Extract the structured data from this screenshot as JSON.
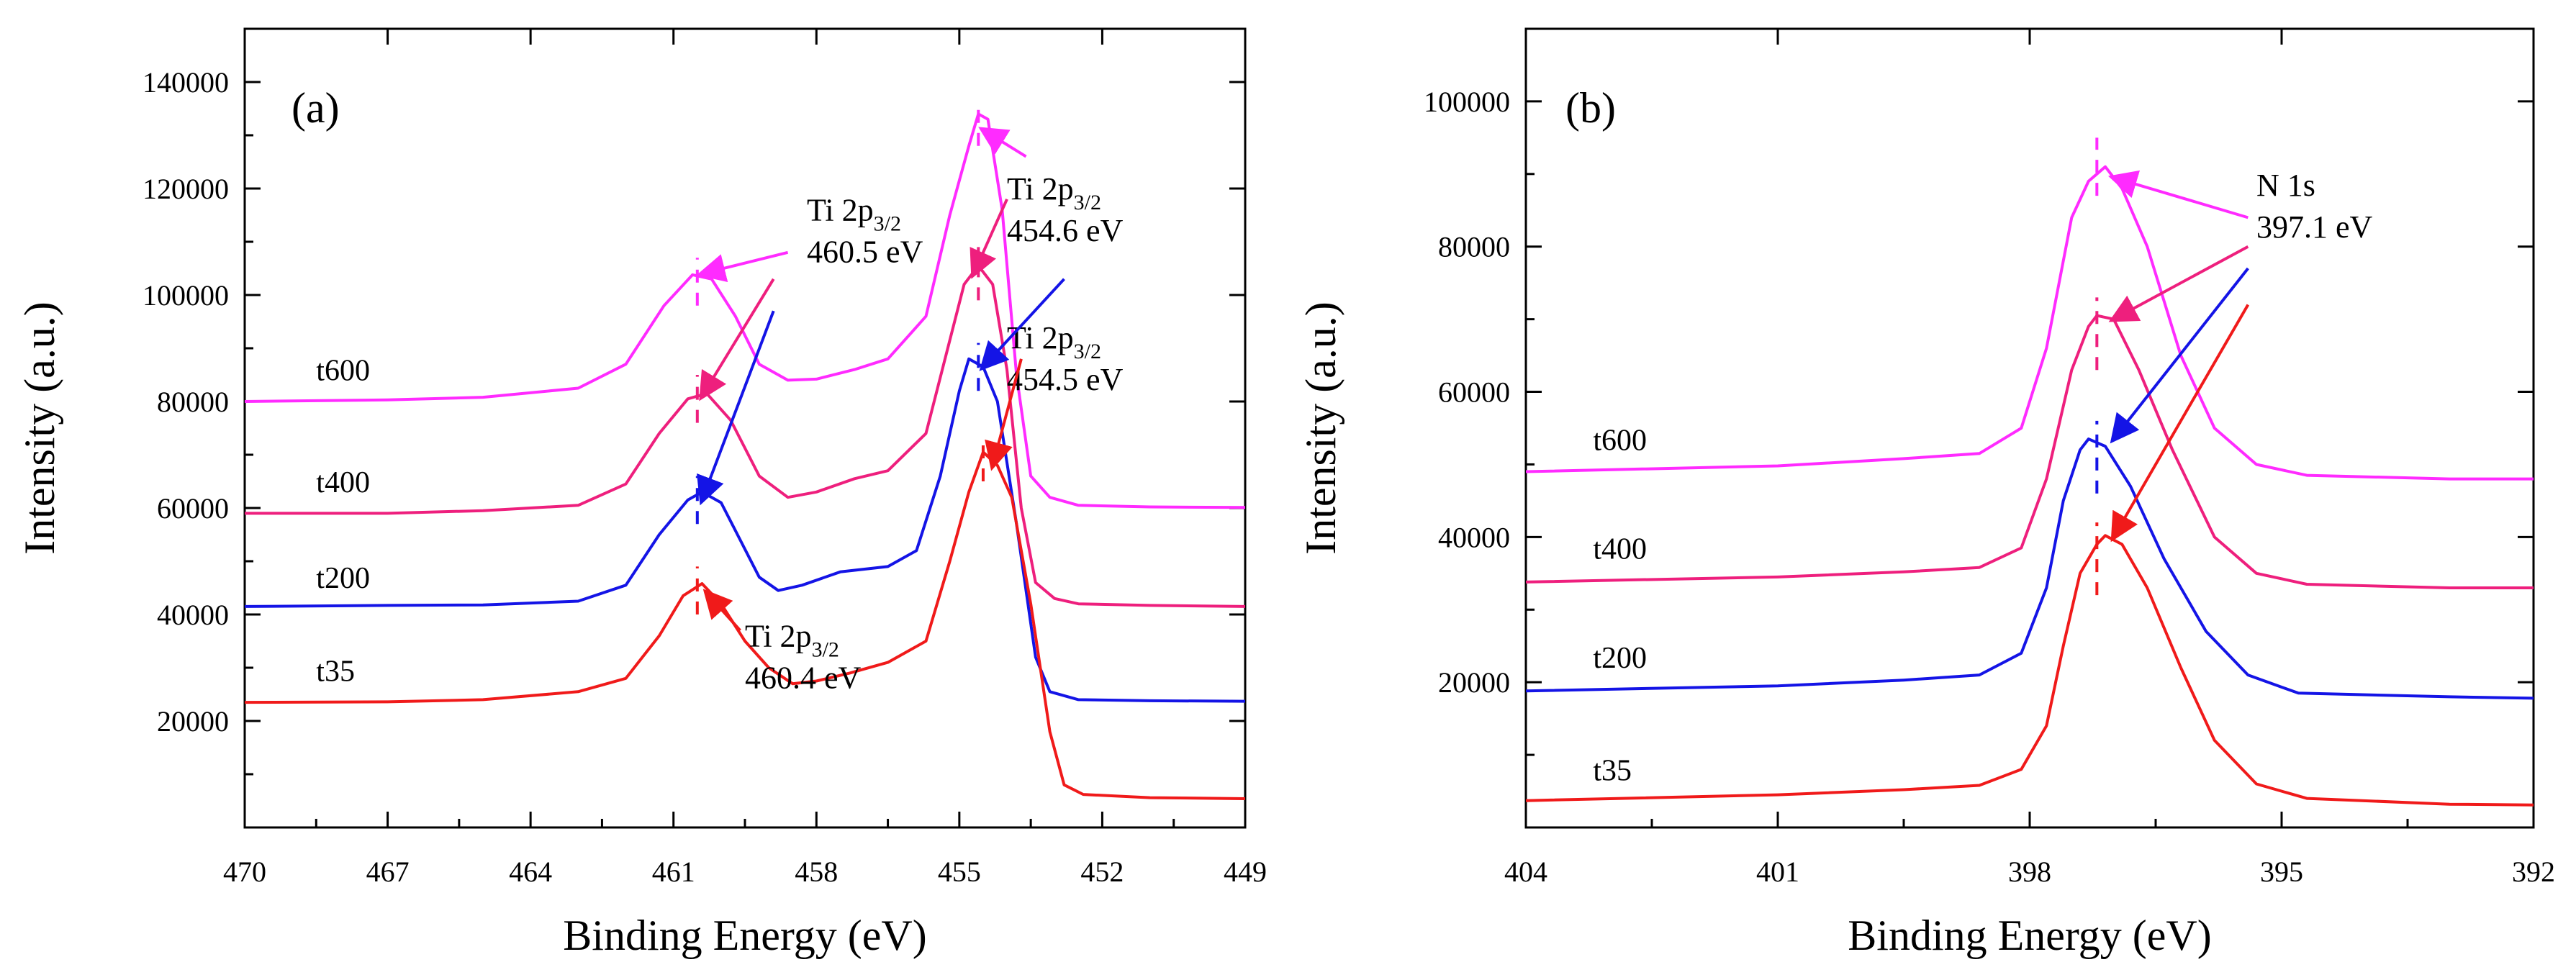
{
  "colors": {
    "t600": "#ff2bff",
    "t400": "#ee1f7d",
    "t200": "#1414e6",
    "t35": "#f01a1a"
  },
  "chart_data": [
    {
      "type": "line",
      "panel_label": "(a)",
      "xlabel": "Binding Energy (eV)",
      "ylabel": "Intensity (a.u.)",
      "xlim": [
        470,
        449
      ],
      "ylim": [
        0,
        150000
      ],
      "xticks": [
        "470",
        "467",
        "464",
        "461",
        "458",
        "455",
        "452",
        "449"
      ],
      "yticks": [
        "20000",
        "40000",
        "60000",
        "80000",
        "100000",
        "120000",
        "140000"
      ],
      "series": [
        {
          "name": "t600",
          "color_key": "t600",
          "label": "t600",
          "points": [
            [
              470,
              80000
            ],
            [
              467,
              80300
            ],
            [
              465,
              80800
            ],
            [
              463,
              82500
            ],
            [
              462,
              87000
            ],
            [
              461.2,
              98000
            ],
            [
              460.6,
              103800
            ],
            [
              460.2,
              103000
            ],
            [
              459.7,
              96000
            ],
            [
              459.2,
              87000
            ],
            [
              458.6,
              84000
            ],
            [
              458,
              84200
            ],
            [
              457.2,
              86000
            ],
            [
              456.5,
              88000
            ],
            [
              455.7,
              96000
            ],
            [
              455.2,
              115000
            ],
            [
              454.8,
              128000
            ],
            [
              454.6,
              134000
            ],
            [
              454.4,
              133000
            ],
            [
              454.1,
              116000
            ],
            [
              453.8,
              85000
            ],
            [
              453.5,
              66000
            ],
            [
              453.1,
              62000
            ],
            [
              452.5,
              60500
            ],
            [
              451,
              60200
            ],
            [
              449,
              60100
            ]
          ]
        },
        {
          "name": "t400",
          "color_key": "t400",
          "label": "t400",
          "points": [
            [
              470,
              59000
            ],
            [
              467,
              59000
            ],
            [
              465,
              59500
            ],
            [
              463,
              60500
            ],
            [
              462,
              64500
            ],
            [
              461.3,
              74000
            ],
            [
              460.7,
              80500
            ],
            [
              460.3,
              81500
            ],
            [
              459.8,
              76500
            ],
            [
              459.2,
              66000
            ],
            [
              458.6,
              62000
            ],
            [
              458,
              63000
            ],
            [
              457.2,
              65500
            ],
            [
              456.5,
              67000
            ],
            [
              455.7,
              74000
            ],
            [
              455.3,
              88000
            ],
            [
              454.9,
              102000
            ],
            [
              454.6,
              105500
            ],
            [
              454.3,
              102000
            ],
            [
              454,
              86000
            ],
            [
              453.7,
              60000
            ],
            [
              453.4,
              46000
            ],
            [
              453,
              43000
            ],
            [
              452.5,
              42000
            ],
            [
              451,
              41700
            ],
            [
              449,
              41500
            ]
          ]
        },
        {
          "name": "t200",
          "color_key": "t200",
          "label": "t200",
          "points": [
            [
              470,
              41500
            ],
            [
              467,
              41700
            ],
            [
              465,
              41800
            ],
            [
              463,
              42500
            ],
            [
              462,
              45500
            ],
            [
              461.3,
              55000
            ],
            [
              460.7,
              61500
            ],
            [
              460.4,
              63000
            ],
            [
              460,
              61000
            ],
            [
              459.6,
              54000
            ],
            [
              459.2,
              47000
            ],
            [
              458.8,
              44500
            ],
            [
              458.3,
              45500
            ],
            [
              457.5,
              48000
            ],
            [
              456.5,
              49000
            ],
            [
              455.9,
              52000
            ],
            [
              455.4,
              66000
            ],
            [
              455,
              82000
            ],
            [
              454.8,
              88000
            ],
            [
              454.5,
              86500
            ],
            [
              454.2,
              80000
            ],
            [
              453.8,
              57000
            ],
            [
              453.4,
              32000
            ],
            [
              453.1,
              25500
            ],
            [
              452.5,
              24000
            ],
            [
              451,
              23800
            ],
            [
              449,
              23700
            ]
          ]
        },
        {
          "name": "t35",
          "color_key": "t35",
          "label": "t35",
          "points": [
            [
              470,
              23500
            ],
            [
              467,
              23600
            ],
            [
              465,
              24000
            ],
            [
              463,
              25500
            ],
            [
              462,
              28000
            ],
            [
              461.3,
              36000
            ],
            [
              460.8,
              43500
            ],
            [
              460.4,
              45800
            ],
            [
              460,
              42000
            ],
            [
              459.5,
              35000
            ],
            [
              459,
              30000
            ],
            [
              458.5,
              27000
            ],
            [
              458,
              27500
            ],
            [
              457.3,
              29000
            ],
            [
              456.5,
              31000
            ],
            [
              455.7,
              35000
            ],
            [
              455.2,
              50000
            ],
            [
              454.8,
              63000
            ],
            [
              454.5,
              70500
            ],
            [
              454.2,
              68000
            ],
            [
              453.9,
              62000
            ],
            [
              453.5,
              42000
            ],
            [
              453.1,
              18000
            ],
            [
              452.8,
              8000
            ],
            [
              452.4,
              6200
            ],
            [
              451,
              5600
            ],
            [
              449,
              5400
            ]
          ]
        }
      ],
      "peak_markers": [
        {
          "x": 460.5,
          "y_from": 98000,
          "y_to": 107000,
          "color_key": "t600"
        },
        {
          "x": 454.6,
          "y_from": 128000,
          "y_to": 136000,
          "color_key": "t600"
        },
        {
          "x": 460.5,
          "y_from": 76000,
          "y_to": 85000,
          "color_key": "t400"
        },
        {
          "x": 454.6,
          "y_from": 99000,
          "y_to": 109000,
          "color_key": "t400"
        },
        {
          "x": 460.5,
          "y_from": 57000,
          "y_to": 66000,
          "color_key": "t200"
        },
        {
          "x": 454.6,
          "y_from": 82000,
          "y_to": 91000,
          "color_key": "t200"
        },
        {
          "x": 460.5,
          "y_from": 40000,
          "y_to": 49000,
          "color_key": "t35"
        },
        {
          "x": 454.5,
          "y_from": 65000,
          "y_to": 73000,
          "color_key": "t35"
        }
      ],
      "curve_labels": [
        {
          "text": "t600",
          "x": 468.5,
          "y": 84000
        },
        {
          "text": "t400",
          "x": 468.5,
          "y": 63000
        },
        {
          "text": "t200",
          "x": 468.5,
          "y": 45000
        },
        {
          "text": "t35",
          "x": 468.5,
          "y": 27500
        }
      ],
      "annotations": [
        {
          "main": "Ti 2p",
          "sub": "3/2",
          "value": "460.5 eV",
          "x": 458.2,
          "y": 114000
        },
        {
          "main": "Ti 2p",
          "sub": "3/2",
          "value": "454.6 eV",
          "x": 454.0,
          "y": 118000
        },
        {
          "main": "Ti 2p",
          "sub": "3/2",
          "value": "454.5 eV",
          "x": 454.0,
          "y": 90000
        },
        {
          "main": "Ti 2p",
          "sub": "3/2",
          "value": "460.4 eV",
          "x": 459.5,
          "y": 34000
        }
      ],
      "arrows": [
        {
          "from": [
            458.6,
            108000
          ],
          "to": [
            460.4,
            104000
          ],
          "color_key": "t600"
        },
        {
          "from": [
            453.6,
            126000
          ],
          "to": [
            454.5,
            131000
          ],
          "color_key": "t600"
        },
        {
          "from": [
            458.9,
            103000
          ],
          "to": [
            460.4,
            81000
          ],
          "color_key": "t400"
        },
        {
          "from": [
            454.0,
            118000
          ],
          "to": [
            454.7,
            104000
          ],
          "color_key": "t400"
        },
        {
          "from": [
            458.9,
            97000
          ],
          "to": [
            460.4,
            61500
          ],
          "color_key": "t200"
        },
        {
          "from": [
            452.8,
            103000
          ],
          "to": [
            454.5,
            86500
          ],
          "color_key": "t200"
        },
        {
          "from": [
            453.7,
            88000
          ],
          "to": [
            454.3,
            68000
          ],
          "color_key": "t35"
        },
        {
          "from": [
            459.6,
            37000
          ],
          "to": [
            460.3,
            44000
          ],
          "color_key": "t35"
        }
      ]
    },
    {
      "type": "line",
      "panel_label": "(b)",
      "xlabel": "Binding Energy (eV)",
      "ylabel": "Intensity (a.u.)",
      "xlim": [
        404,
        392
      ],
      "ylim": [
        0,
        110000
      ],
      "xticks": [
        "404",
        "401",
        "398",
        "395",
        "392"
      ],
      "yticks": [
        "20000",
        "40000",
        "60000",
        "80000",
        "100000"
      ],
      "series": [
        {
          "name": "t600",
          "color_key": "t600",
          "label": "t600",
          "points": [
            [
              404,
              49000
            ],
            [
              401,
              49800
            ],
            [
              399.5,
              50800
            ],
            [
              398.6,
              51500
            ],
            [
              398.1,
              55000
            ],
            [
              397.8,
              66000
            ],
            [
              397.5,
              84000
            ],
            [
              397.3,
              89000
            ],
            [
              397.1,
              91000
            ],
            [
              396.9,
              88000
            ],
            [
              396.6,
              80000
            ],
            [
              396.2,
              65000
            ],
            [
              395.8,
              55000
            ],
            [
              395.3,
              50000
            ],
            [
              394.7,
              48500
            ],
            [
              393,
              48000
            ],
            [
              392,
              48000
            ]
          ]
        },
        {
          "name": "t400",
          "color_key": "t400",
          "label": "t400",
          "points": [
            [
              404,
              33800
            ],
            [
              401,
              34500
            ],
            [
              399.5,
              35200
            ],
            [
              398.6,
              35800
            ],
            [
              398.1,
              38500
            ],
            [
              397.8,
              48000
            ],
            [
              397.5,
              63000
            ],
            [
              397.3,
              69000
            ],
            [
              397.2,
              70500
            ],
            [
              397,
              70000
            ],
            [
              396.7,
              63000
            ],
            [
              396.3,
              52000
            ],
            [
              395.8,
              40000
            ],
            [
              395.3,
              35000
            ],
            [
              394.7,
              33500
            ],
            [
              393,
              33000
            ],
            [
              392,
              33000
            ]
          ]
        },
        {
          "name": "t200",
          "color_key": "t200",
          "label": "t200",
          "points": [
            [
              404,
              18800
            ],
            [
              401,
              19500
            ],
            [
              399.5,
              20300
            ],
            [
              398.6,
              21000
            ],
            [
              398.1,
              24000
            ],
            [
              397.8,
              33000
            ],
            [
              397.6,
              45000
            ],
            [
              397.4,
              52000
            ],
            [
              397.3,
              53500
            ],
            [
              397.1,
              52500
            ],
            [
              396.8,
              47000
            ],
            [
              396.4,
              37000
            ],
            [
              395.9,
              27000
            ],
            [
              395.4,
              21000
            ],
            [
              394.8,
              18500
            ],
            [
              393,
              18000
            ],
            [
              392,
              17800
            ]
          ]
        },
        {
          "name": "t35",
          "color_key": "t35",
          "label": "t35",
          "points": [
            [
              404,
              3700
            ],
            [
              401,
              4500
            ],
            [
              399.5,
              5200
            ],
            [
              398.6,
              5800
            ],
            [
              398.1,
              8000
            ],
            [
              397.8,
              14000
            ],
            [
              397.6,
              25000
            ],
            [
              397.4,
              35000
            ],
            [
              397.2,
              39000
            ],
            [
              397.1,
              40200
            ],
            [
              396.9,
              39000
            ],
            [
              396.6,
              33000
            ],
            [
              396.2,
              22000
            ],
            [
              395.8,
              12000
            ],
            [
              395.3,
              6000
            ],
            [
              394.7,
              4000
            ],
            [
              393,
              3200
            ],
            [
              392,
              3100
            ]
          ]
        }
      ],
      "peak_markers": [
        {
          "x": 397.2,
          "y_from": 87000,
          "y_to": 95000,
          "color_key": "t600"
        },
        {
          "x": 397.2,
          "y_from": 63000,
          "y_to": 73000,
          "color_key": "t400"
        },
        {
          "x": 397.2,
          "y_from": 46000,
          "y_to": 56000,
          "color_key": "t200"
        },
        {
          "x": 397.2,
          "y_from": 32000,
          "y_to": 42000,
          "color_key": "t35"
        }
      ],
      "curve_labels": [
        {
          "text": "t600",
          "x": 403.2,
          "y": 52000
        },
        {
          "text": "t400",
          "x": 403.2,
          "y": 37000
        },
        {
          "text": "t200",
          "x": 403.2,
          "y": 22000
        },
        {
          "text": "t35",
          "x": 403.2,
          "y": 6500
        }
      ],
      "annotations": [
        {
          "main": "N 1s",
          "sub": "",
          "value": "397.1 eV",
          "x": 395.3,
          "y": 87000
        }
      ],
      "arrows": [
        {
          "from": [
            395.4,
            84000
          ],
          "to": [
            397.0,
            89500
          ],
          "color_key": "t600"
        },
        {
          "from": [
            395.4,
            80000
          ],
          "to": [
            397.0,
            70000
          ],
          "color_key": "t400"
        },
        {
          "from": [
            395.4,
            77000
          ],
          "to": [
            397.0,
            53500
          ],
          "color_key": "t200"
        },
        {
          "from": [
            395.4,
            72000
          ],
          "to": [
            397.0,
            40000
          ],
          "color_key": "t35"
        }
      ]
    }
  ]
}
